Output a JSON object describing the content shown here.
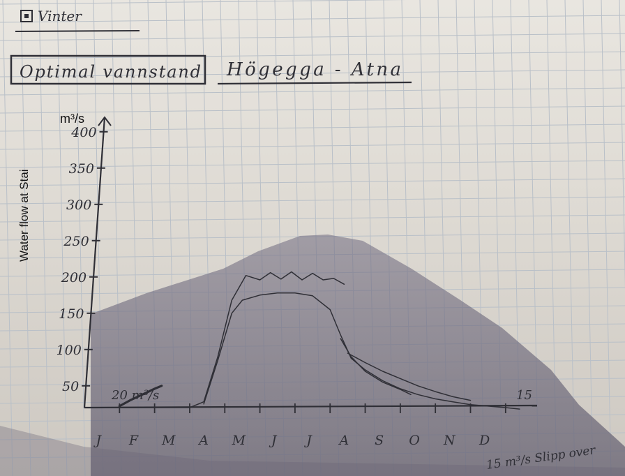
{
  "header": {
    "checkbox_label": "Vinter",
    "box_label": "Optimal vannstand",
    "title": "Högegga - Atna"
  },
  "annotations": {
    "low_flow_note": "20 m³/s",
    "end_value": "15",
    "bottom_note": "15 m³/s Slipp over"
  },
  "axis_labels": {
    "y_unit": "m³/s",
    "y_title": "Water flow at Stai"
  },
  "colors": {
    "ink": "#2f2f36",
    "grid": "#b9c0c8",
    "shadow": "#6e6a7c",
    "paper": "#e4e1dc"
  },
  "chart_data": {
    "type": "line",
    "title": "Högegga - Atna",
    "xlabel": "",
    "ylabel": "Water flow at Stai",
    "y_unit": "m³/s",
    "y_ticks": [
      "50",
      "100",
      "150",
      "200",
      "250",
      "300",
      "350",
      "400"
    ],
    "categories": [
      "J",
      "F",
      "M",
      "A",
      "M",
      "J",
      "J",
      "A",
      "S",
      "O",
      "N",
      "D"
    ],
    "ylim": [
      20,
      420
    ],
    "xlim": [
      0,
      12.6
    ],
    "grid": true,
    "series": [
      {
        "name": "",
        "style": "wavy",
        "points": [
          [
            0,
            20
          ],
          [
            1,
            20
          ],
          [
            2,
            20
          ],
          [
            3,
            20
          ],
          [
            3.4,
            28
          ],
          [
            3.8,
            90
          ],
          [
            4.2,
            168
          ],
          [
            4.6,
            202
          ],
          [
            5,
            196
          ],
          [
            5.3,
            206
          ],
          [
            5.6,
            197
          ],
          [
            5.9,
            207
          ],
          [
            6.2,
            196
          ],
          [
            6.5,
            205
          ],
          [
            6.8,
            196
          ],
          [
            7.1,
            198
          ],
          [
            7.4,
            190
          ]
        ]
      },
      {
        "name": "",
        "style": "smooth",
        "points": [
          [
            3.4,
            25
          ],
          [
            3.8,
            85
          ],
          [
            4.2,
            150
          ],
          [
            4.5,
            168
          ],
          [
            5,
            175
          ],
          [
            5.5,
            178
          ],
          [
            6,
            178
          ],
          [
            6.5,
            174
          ],
          [
            7,
            155
          ],
          [
            7.3,
            120
          ],
          [
            7.6,
            88
          ],
          [
            8,
            72
          ],
          [
            8.5,
            57
          ],
          [
            9,
            46
          ],
          [
            9.5,
            38
          ],
          [
            10,
            32
          ],
          [
            10.5,
            28
          ],
          [
            11,
            24
          ],
          [
            11.5,
            22
          ],
          [
            12,
            20
          ],
          [
            12.4,
            18
          ]
        ]
      },
      {
        "name": "",
        "style": "recession",
        "points": [
          [
            7.3,
            115
          ],
          [
            7.6,
            90
          ],
          [
            8,
            70
          ],
          [
            8.5,
            55
          ],
          [
            9,
            45
          ],
          [
            9.3,
            38
          ]
        ]
      },
      {
        "name": "",
        "style": "recession",
        "points": [
          [
            7.5,
            95
          ],
          [
            8,
            82
          ],
          [
            8.5,
            70
          ],
          [
            9,
            60
          ],
          [
            9.5,
            50
          ],
          [
            10,
            42
          ],
          [
            10.5,
            35
          ],
          [
            11,
            30
          ]
        ]
      },
      {
        "name": "",
        "style": "winter",
        "points": [
          [
            1,
            22
          ],
          [
            1.3,
            30
          ],
          [
            1.7,
            39
          ],
          [
            2,
            46
          ],
          [
            2.2,
            50
          ]
        ]
      }
    ]
  }
}
